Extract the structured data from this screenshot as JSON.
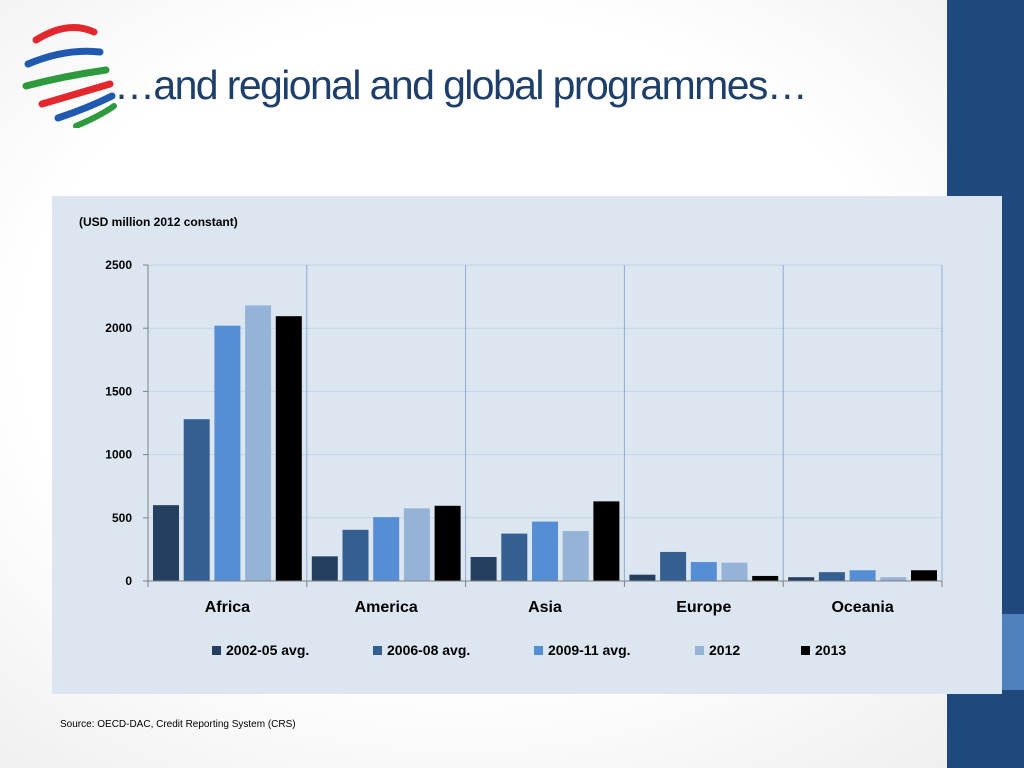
{
  "slide": {
    "title": "…and regional and global programmes…",
    "source": "Source: OECD-DAC, Credit Reporting System (CRS)",
    "logo_icon": "wto-logo-icon"
  },
  "colors": {
    "sidebar": "#1f497d",
    "sidebar_accent": "#4f81bd",
    "panel": "#dce6f1",
    "title": "#1f3f6b"
  },
  "chart_data": {
    "type": "bar",
    "unit_label": "(USD million 2012 constant)",
    "categories": [
      "Africa",
      "America",
      "Asia",
      "Europe",
      "Oceania"
    ],
    "series": [
      {
        "name": "2002-05 avg.",
        "color": "#243f60",
        "values": [
          600,
          195,
          190,
          50,
          30
        ]
      },
      {
        "name": "2006-08 avg.",
        "color": "#365f91",
        "values": [
          1280,
          405,
          375,
          230,
          70
        ]
      },
      {
        "name": "2009-11 avg.",
        "color": "#558ed5",
        "values": [
          2020,
          505,
          470,
          150,
          85
        ]
      },
      {
        "name": "2012",
        "color": "#95b3d7",
        "values": [
          2180,
          575,
          395,
          145,
          30
        ]
      },
      {
        "name": "2013",
        "color": "#000000",
        "values": [
          2095,
          595,
          630,
          40,
          85
        ]
      }
    ],
    "ylim": [
      0,
      2500
    ],
    "yticks": [
      0,
      500,
      1000,
      1500,
      2000,
      2500
    ],
    "grid": true,
    "legend_position": "bottom"
  }
}
